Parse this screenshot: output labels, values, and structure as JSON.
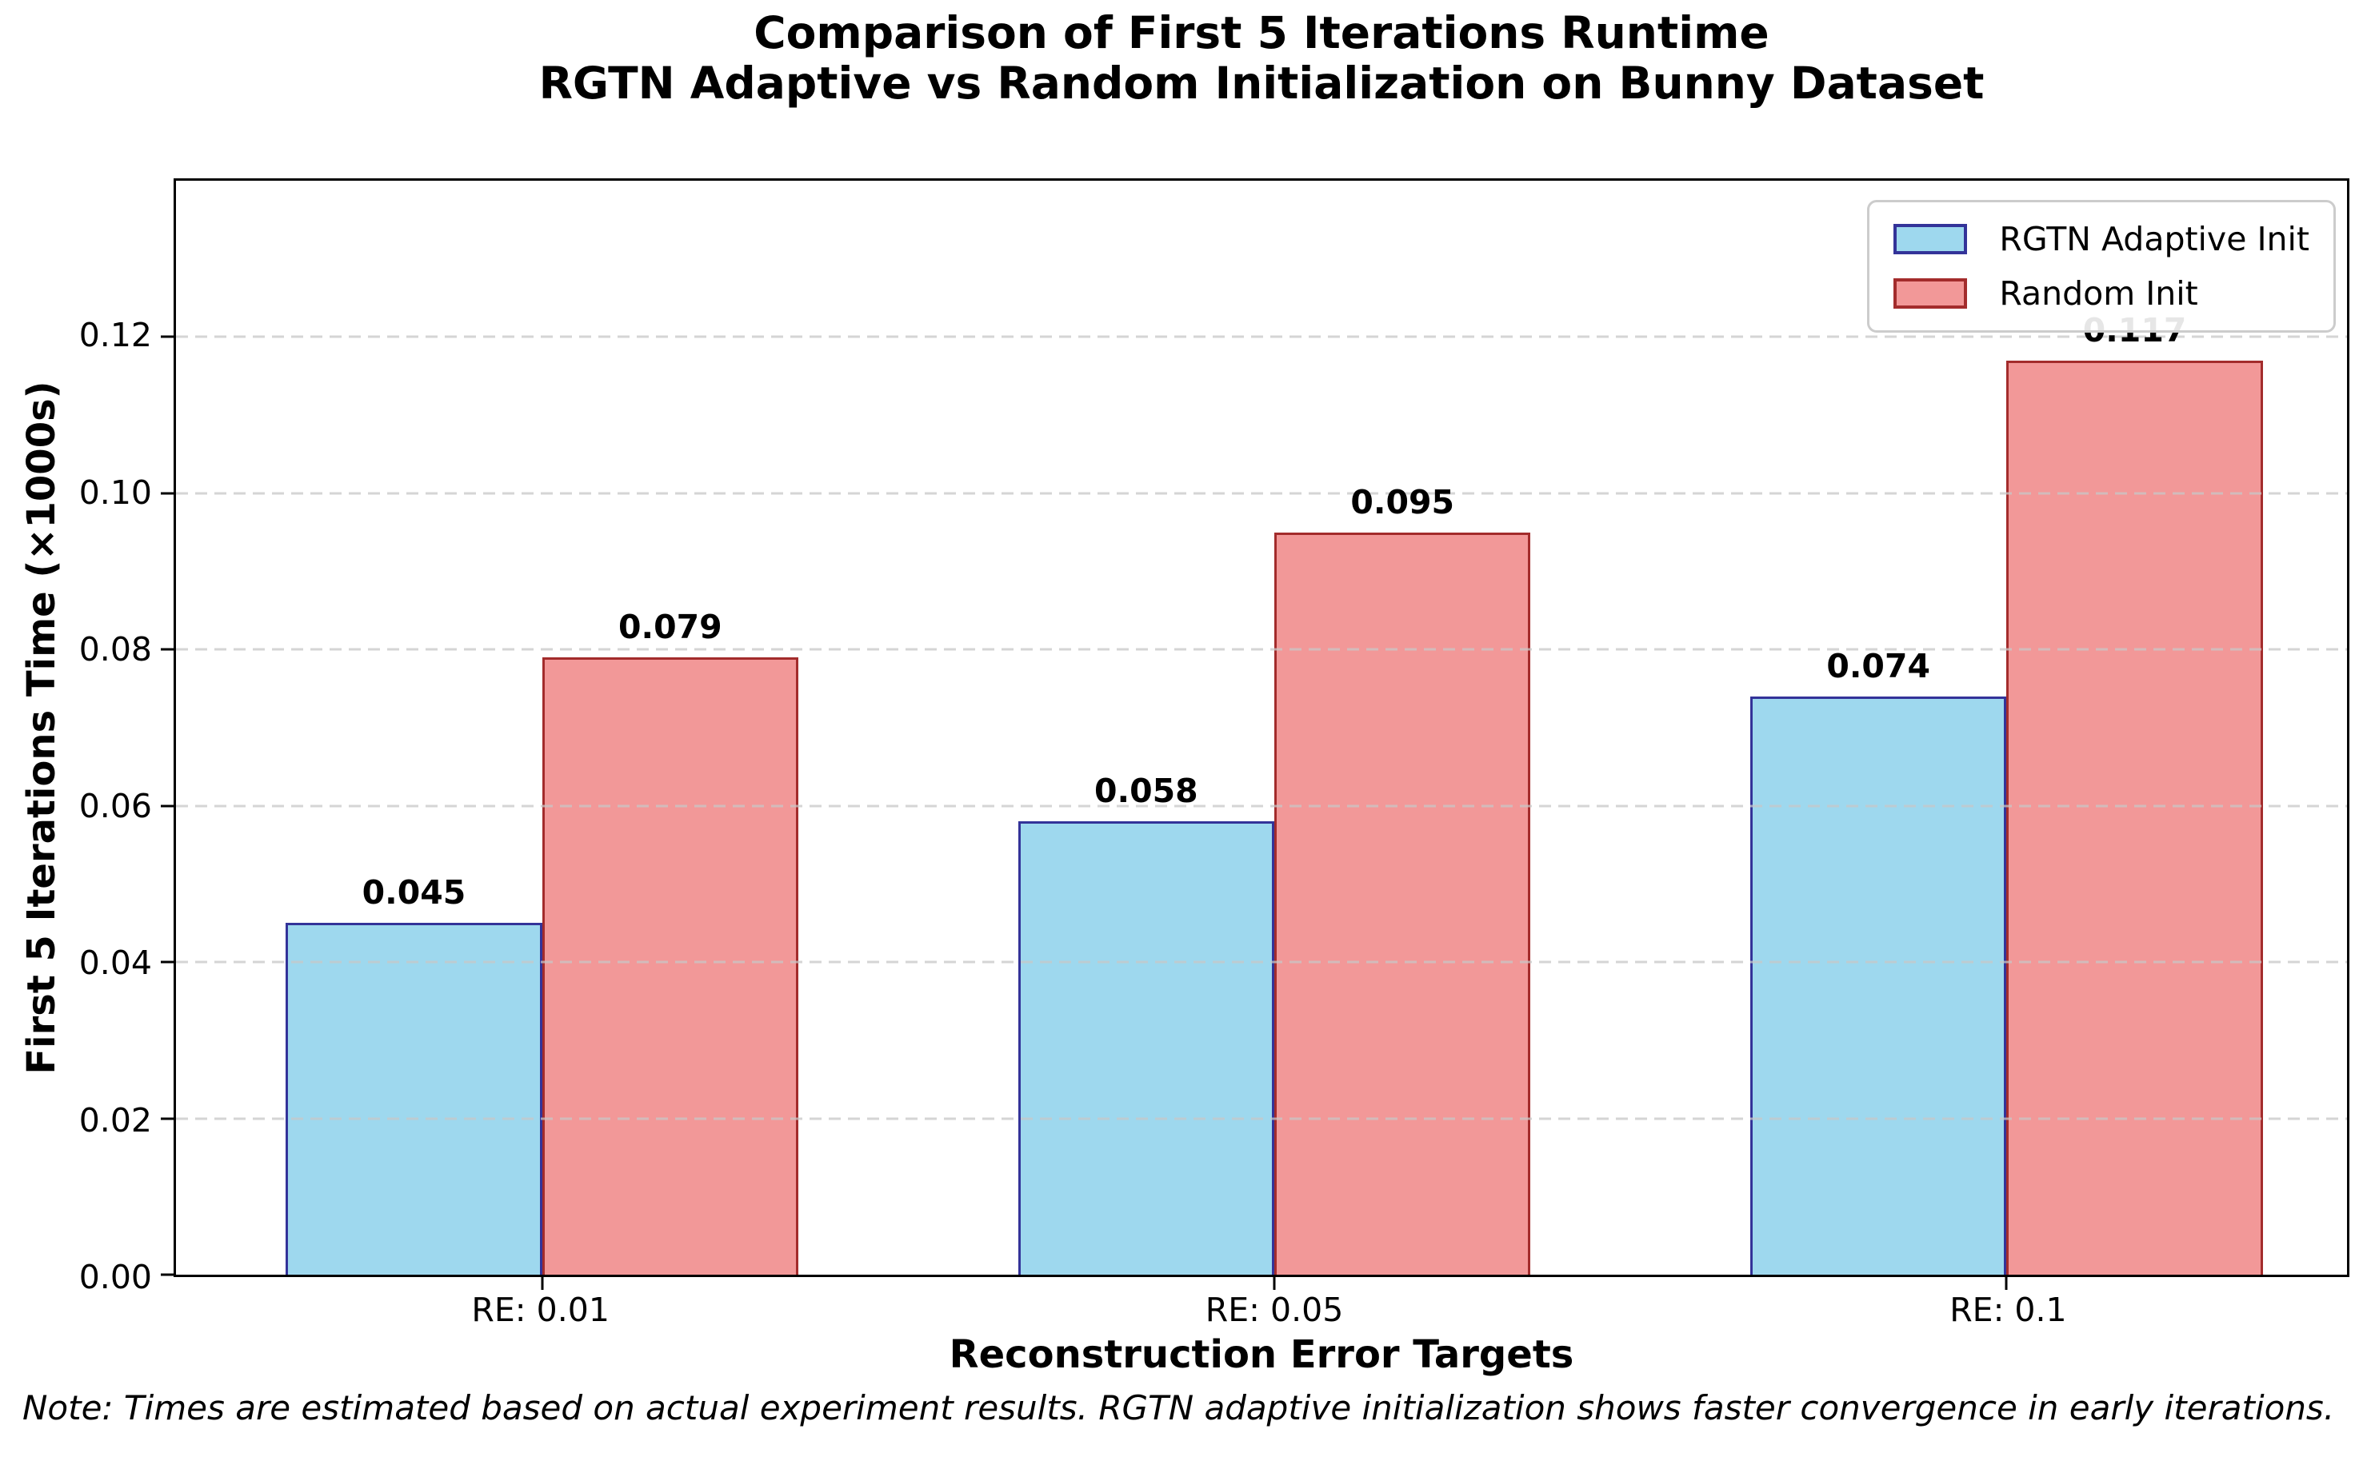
{
  "title": {
    "line1": "Comparison of First 5 Iterations Runtime",
    "line2": "RGTN Adaptive vs Random Initialization on Bunny Dataset"
  },
  "note": "Note: Times are estimated based on actual experiment results. RGTN adaptive initialization shows faster convergence in early iterations.",
  "chart_data": {
    "type": "bar",
    "title": "Comparison of First 5 Iterations Runtime\nRGTN Adaptive vs Random Initialization on Bunny Dataset",
    "xlabel": "Reconstruction Error Targets",
    "ylabel": "First 5 Iterations Time (×1000s)",
    "categories": [
      "RE: 0.01",
      "RE: 0.05",
      "RE: 0.1"
    ],
    "series": [
      {
        "name": "RGTN Adaptive Init",
        "values": [
          0.045,
          0.058,
          0.074
        ],
        "fill": "#9ed8ee",
        "edge": "#333399"
      },
      {
        "name": "Random Init",
        "values": [
          0.079,
          0.095,
          0.117
        ],
        "fill": "#f29898",
        "edge": "#a32c2c"
      }
    ],
    "bar_labels": [
      "0.045",
      "0.058",
      "0.074",
      "0.079",
      "0.095",
      "0.117"
    ],
    "ylim": [
      0,
      0.14
    ],
    "yticks": [
      0.0,
      0.02,
      0.04,
      0.06,
      0.08,
      0.1,
      0.12
    ],
    "ytick_labels": [
      "0.00",
      "0.02",
      "0.04",
      "0.06",
      "0.08",
      "0.10",
      "0.12"
    ],
    "grid": "horizontal dashed, drawn above bars",
    "grid_color": "#c7c7c7",
    "legend_position": "upper right",
    "bar_width_units": 0.35,
    "x_axis_padding_units": [
      0.5,
      0.465
    ]
  }
}
